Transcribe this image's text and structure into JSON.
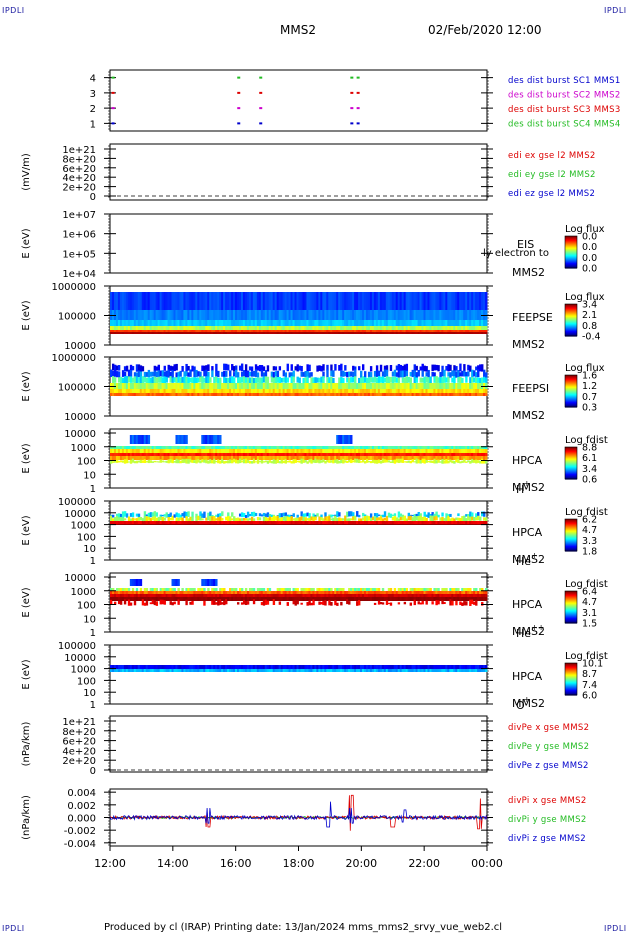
{
  "header": {
    "corner_tl": "IPDLI",
    "corner_tr": "IPDLI",
    "corner_bl": "IPDLI",
    "corner_br": "IPDLI",
    "title": "MMS2",
    "datetime": "02/Feb/2020 12:00"
  },
  "footer": {
    "text": "Produced by cl (IRAP)   Printing date: 13/Jan/2024   mms_mms2_srvy_vue_web2.cl"
  },
  "colors": {
    "blue": "#0000cc",
    "magenta": "#cc00cc",
    "red": "#dd0000",
    "green": "#22bb22"
  },
  "chart_data": [
    {
      "type": "line",
      "panel": "burst",
      "ylim": [
        0.5,
        4.5
      ],
      "ticks": [
        "1",
        "2",
        "3",
        "4"
      ],
      "legend": [
        {
          "text": "des dist burst SC1 MMS1",
          "color": "#0000cc"
        },
        {
          "text": "des dist burst SC2 MMS2",
          "color": "#cc00cc"
        },
        {
          "text": "des dist burst SC3 MMS3",
          "color": "#dd0000"
        },
        {
          "text": "des dist burst SC4 MMS4",
          "color": "#22bb22"
        }
      ],
      "burst_times_h": [
        12.05,
        16.05,
        16.75,
        19.65,
        19.85
      ]
    },
    {
      "type": "line",
      "panel": "edi",
      "ylabel": "(mV/m)",
      "ticks": [
        "1e+21",
        "8e+20",
        "6e+20",
        "4e+20",
        "2e+20",
        "0"
      ],
      "legend": [
        {
          "text": "edi ex gse l2 MMS2",
          "color": "#dd0000"
        },
        {
          "text": "edi ey gse l2 MMS2",
          "color": "#22bb22"
        },
        {
          "text": "edi ez gse l2 MMS2",
          "color": "#0000cc"
        }
      ]
    },
    {
      "type": "heatmap",
      "panel": "eis",
      "ylabel": "E (eV)",
      "ticks": [
        "1e+07",
        "1e+06",
        "1e+05",
        "1e+04"
      ],
      "labels": [
        "EIS",
        "MMS2"
      ],
      "overlay": "ly electron to",
      "colorbar": {
        "title": "Log flux",
        "ticks": [
          "0.0",
          "0.0",
          "0.0",
          "0.0"
        ]
      }
    },
    {
      "type": "heatmap",
      "panel": "feepse",
      "ylabel": "E (eV)",
      "ticks": [
        "1000000",
        "100000",
        "10000"
      ],
      "labels": [
        "FEEPSE",
        "MMS2"
      ],
      "colorbar": {
        "title": "Log flux",
        "ticks": [
          "3.4",
          "2.1",
          "0.8",
          "-0.4"
        ]
      }
    },
    {
      "type": "heatmap",
      "panel": "feepsi",
      "ylabel": "E (eV)",
      "ticks": [
        "1000000",
        "100000",
        "10000"
      ],
      "labels": [
        "FEEPSI",
        "MMS2"
      ],
      "colorbar": {
        "title": "Log flux",
        "ticks": [
          "1.6",
          "1.2",
          "0.7",
          "0.3"
        ]
      }
    },
    {
      "type": "heatmap",
      "panel": "hpca-h",
      "ylabel": "E (eV)",
      "ticks": [
        "10000",
        "1000",
        "100",
        "10",
        "1"
      ],
      "labels": [
        "HPCA",
        "MMS2"
      ],
      "species": "H",
      "species_sup": "+",
      "colorbar": {
        "title": "Log fdist",
        "ticks": [
          "8.8",
          "6.1",
          "3.4",
          "0.6"
        ]
      }
    },
    {
      "type": "heatmap",
      "panel": "hpca-he",
      "ylabel": "E (eV)",
      "ticks": [
        "100000",
        "10000",
        "1000",
        "100",
        "10",
        "1"
      ],
      "labels": [
        "HPCA",
        "MMS2"
      ],
      "species": "He",
      "species_sup": "+",
      "colorbar": {
        "title": "Log fdist",
        "ticks": [
          "6.2",
          "4.7",
          "3.3",
          "1.8"
        ]
      }
    },
    {
      "type": "heatmap",
      "panel": "hpca-hepp",
      "ylabel": "E (eV)",
      "ticks": [
        "10000",
        "1000",
        "100",
        "10",
        "1"
      ],
      "labels": [
        "HPCA",
        "MMS2"
      ],
      "species": "He",
      "species_sup": "++",
      "colorbar": {
        "title": "Log fdist",
        "ticks": [
          "6.4",
          "4.7",
          "3.1",
          "1.5"
        ]
      }
    },
    {
      "type": "heatmap",
      "panel": "hpca-o",
      "ylabel": "E (eV)",
      "ticks": [
        "100000",
        "10000",
        "1000",
        "100",
        "10",
        "1"
      ],
      "labels": [
        "HPCA",
        "MMS2"
      ],
      "species": "O",
      "species_sup": "+",
      "colorbar": {
        "title": "Log fdist",
        "ticks": [
          "10.1",
          "8.7",
          "7.4",
          "6.0"
        ]
      }
    },
    {
      "type": "line",
      "panel": "divpe",
      "ylabel": "(nPa/km)",
      "ticks": [
        "1e+21",
        "8e+20",
        "6e+20",
        "4e+20",
        "2e+20",
        "0"
      ],
      "legend": [
        {
          "text": "divPe x gse MMS2",
          "color": "#dd0000"
        },
        {
          "text": "divPe y gse MMS2",
          "color": "#22bb22"
        },
        {
          "text": "divPe z gse MMS2",
          "color": "#0000cc"
        }
      ]
    },
    {
      "type": "line",
      "panel": "divpi",
      "ylabel": "(nPa/km)",
      "ylim": [
        -0.0045,
        0.0045
      ],
      "ticks": [
        "0.004",
        "0.002",
        "0.000",
        "-0.002",
        "-0.004"
      ],
      "legend": [
        {
          "text": "divPi x gse MMS2",
          "color": "#dd0000"
        },
        {
          "text": "divPi y gse MMS2",
          "color": "#22bb22"
        },
        {
          "text": "divPi z gse MMS2",
          "color": "#0000cc"
        }
      ]
    }
  ],
  "x_axis": {
    "range_h": [
      12,
      24
    ],
    "tick_labels": [
      "12:00",
      "14:00",
      "16:00",
      "18:00",
      "20:00",
      "22:00",
      "00:00"
    ]
  }
}
